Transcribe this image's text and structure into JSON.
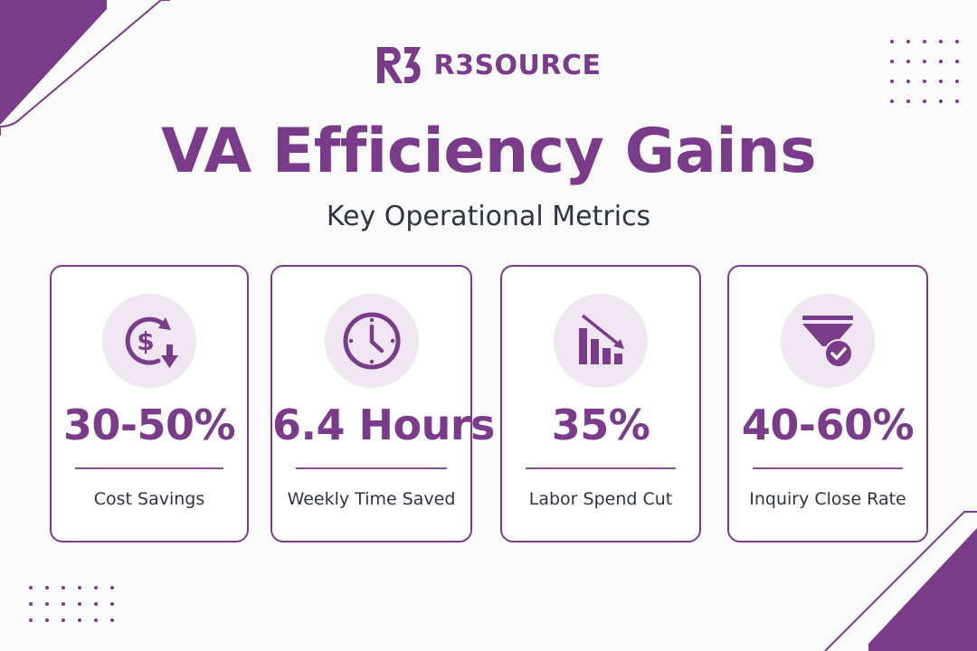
{
  "brand": {
    "logo_text": "R3SOURCE",
    "color": "#7a3b8a"
  },
  "title": "VA Efficiency Gains",
  "subtitle": "Key Operational Metrics",
  "metrics": [
    {
      "value": "30-50%",
      "label": "Cost Savings",
      "icon": "dollar-cycle-down-icon"
    },
    {
      "value": "6.4 Hours",
      "label": "Weekly Time Saved",
      "icon": "clock-icon"
    },
    {
      "value": "35%",
      "label": "Labor Spend Cut",
      "icon": "declining-bar-chart-icon"
    },
    {
      "value": "40-60%",
      "label": "Inquiry Close Rate",
      "icon": "funnel-check-icon"
    }
  ],
  "colors": {
    "accent": "#7a3b8a",
    "icon_bg": "#efe6f1",
    "text_dark": "#2f3440",
    "background": "#fbfafb"
  }
}
